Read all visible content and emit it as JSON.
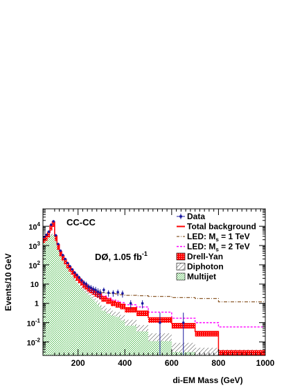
{
  "chart_data": {
    "type": "histogram",
    "xlabel": "di-EM Mass (GeV)",
    "ylabel": "Events/10 GeV",
    "xlim": [
      50,
      1000
    ],
    "ylim": [
      0.002,
      80000
    ],
    "yscale": "log",
    "x_ticks": [
      200,
      400,
      600,
      800,
      1000
    ],
    "y_ticks": [
      {
        "value": 0.01,
        "base": "10",
        "exp": "-2"
      },
      {
        "value": 0.1,
        "base": "10",
        "exp": "-1"
      },
      {
        "value": 1,
        "base": "1",
        "exp": ""
      },
      {
        "value": 10,
        "base": "10",
        "exp": ""
      },
      {
        "value": 100,
        "base": "10",
        "exp": "2"
      },
      {
        "value": 1000,
        "base": "10",
        "exp": "3"
      },
      {
        "value": 10000,
        "base": "10",
        "exp": "4"
      }
    ],
    "annotations": {
      "category": "CC-CC",
      "experiment": "DØ, 1.05 fb",
      "experiment_sup": "-1"
    },
    "legend_position": "top-right",
    "legend": [
      {
        "key": "data",
        "label": "Data",
        "sub": "",
        "rest": ""
      },
      {
        "key": "total",
        "label": "Total background",
        "sub": "",
        "rest": ""
      },
      {
        "key": "led1",
        "label": "LED: M",
        "sub": "s",
        "rest": " = 1 TeV"
      },
      {
        "key": "led2",
        "label": "LED: M",
        "sub": "s",
        "rest": " = 2 TeV"
      },
      {
        "key": "dy",
        "label": "Drell-Yan",
        "sub": "",
        "rest": ""
      },
      {
        "key": "dipho",
        "label": "Diphoton",
        "sub": "",
        "rest": ""
      },
      {
        "key": "multijet",
        "label": "Multijet",
        "sub": "",
        "rest": ""
      }
    ],
    "colors": {
      "data": "#1a1aa0",
      "total": "#ff0000",
      "dy": "#ff0000",
      "led1": "#8b5a2b",
      "led2": "#ff00ff",
      "dipho": "#555555",
      "multijet": "#2e9e2e"
    },
    "bins": {
      "edges": [
        50,
        60,
        70,
        80,
        90,
        100,
        110,
        120,
        130,
        140,
        150,
        160,
        170,
        180,
        190,
        200,
        210,
        220,
        230,
        240,
        250,
        260,
        270,
        280,
        290,
        300,
        320,
        340,
        360,
        380,
        400,
        450,
        500,
        600,
        700,
        800,
        1000
      ],
      "total": [
        2500,
        3200,
        4800,
        11000,
        17000,
        3200,
        1100,
        500,
        300,
        190,
        120,
        80,
        55,
        38,
        27,
        20,
        15,
        11,
        9,
        7,
        6,
        5,
        4,
        3.5,
        3,
        2.2,
        1.7,
        1.3,
        1.1,
        0.9,
        0.6,
        0.4,
        0.18,
        0.09,
        0.035,
        0.0035
      ],
      "multijet": [
        2000,
        2500,
        2900,
        3400,
        3600,
        1700,
        650,
        280,
        160,
        100,
        62,
        40,
        27,
        18,
        12,
        9,
        6,
        4.5,
        3.5,
        2.7,
        2.1,
        1.6,
        1.2,
        0.9,
        0.7,
        0.42,
        0.3,
        0.23,
        0.2,
        0.13,
        0.07,
        0.035,
        0.011,
        0.003,
        0.002,
        0.002
      ],
      "diphoton": [
        2300,
        2900,
        3300,
        3900,
        4100,
        2200,
        850,
        370,
        210,
        130,
        82,
        54,
        37,
        25,
        17,
        12.5,
        8.5,
        6.5,
        5,
        3.9,
        3.1,
        2.4,
        1.8,
        1.4,
        1.1,
        0.75,
        0.55,
        0.42,
        0.36,
        0.25,
        0.14,
        0.075,
        0.028,
        0.009,
        0.005,
        0.004
      ],
      "led_1tev": [
        2500,
        3200,
        4800,
        11000,
        17000,
        3200,
        1100,
        500,
        300,
        190,
        120,
        80,
        55,
        38,
        27,
        20,
        15,
        11,
        9,
        7.5,
        6.5,
        5.6,
        4.9,
        4.4,
        4.2,
        3.6,
        3.3,
        3.2,
        3.1,
        2.8,
        2.6,
        2.5,
        2.3,
        2.0,
        1.8,
        1.2
      ],
      "led_2tev": [
        2500,
        3200,
        4800,
        11000,
        17000,
        3200,
        1100,
        500,
        300,
        190,
        120,
        80,
        55,
        38,
        27,
        20,
        15,
        11,
        9,
        7,
        6,
        5,
        4,
        3.6,
        3.2,
        2.4,
        1.9,
        1.5,
        1.3,
        1.1,
        0.85,
        0.65,
        0.35,
        0.17,
        0.1,
        0.06
      ]
    },
    "data_points": [
      {
        "x": 55,
        "y": 2800,
        "err": 50
      },
      {
        "x": 65,
        "y": 3600,
        "err": 60
      },
      {
        "x": 75,
        "y": 5200,
        "err": 70
      },
      {
        "x": 85,
        "y": 12000,
        "err": 110
      },
      {
        "x": 95,
        "y": 18000,
        "err": 130
      },
      {
        "x": 105,
        "y": 3400,
        "err": 58
      },
      {
        "x": 115,
        "y": 1200,
        "err": 35
      },
      {
        "x": 125,
        "y": 540,
        "err": 23
      },
      {
        "x": 135,
        "y": 320,
        "err": 18
      },
      {
        "x": 145,
        "y": 200,
        "err": 14
      },
      {
        "x": 155,
        "y": 125,
        "err": 11
      },
      {
        "x": 165,
        "y": 85,
        "err": 9
      },
      {
        "x": 175,
        "y": 58,
        "err": 7.6
      },
      {
        "x": 185,
        "y": 40,
        "err": 6.3
      },
      {
        "x": 195,
        "y": 30,
        "err": 5.5
      },
      {
        "x": 205,
        "y": 22,
        "err": 4.7
      },
      {
        "x": 215,
        "y": 16,
        "err": 4
      },
      {
        "x": 225,
        "y": 12,
        "err": 3.5
      },
      {
        "x": 235,
        "y": 10,
        "err": 3.2
      },
      {
        "x": 245,
        "y": 7.5,
        "err": 2.7
      },
      {
        "x": 255,
        "y": 6.5,
        "err": 2.5
      },
      {
        "x": 265,
        "y": 5.5,
        "err": 2.3
      },
      {
        "x": 275,
        "y": 5,
        "err": 2.2
      },
      {
        "x": 285,
        "y": 4,
        "err": 2
      },
      {
        "x": 295,
        "y": 3.5,
        "err": 1.9
      },
      {
        "x": 310,
        "y": 5,
        "err": 1.6
      },
      {
        "x": 330,
        "y": 3.5,
        "err": 1.3
      },
      {
        "x": 350,
        "y": 3.5,
        "err": 1.3
      },
      {
        "x": 370,
        "y": 3.8,
        "err": 1.4
      },
      {
        "x": 390,
        "y": 3.3,
        "err": 1.3
      },
      {
        "x": 425,
        "y": 1.0,
        "err": 0.45
      },
      {
        "x": 475,
        "y": 1.0,
        "err": 0.45
      },
      {
        "x": 550,
        "y": 0.1,
        "err": 0.23
      },
      {
        "x": 650,
        "y": 0.1,
        "err": 0.23
      }
    ]
  }
}
